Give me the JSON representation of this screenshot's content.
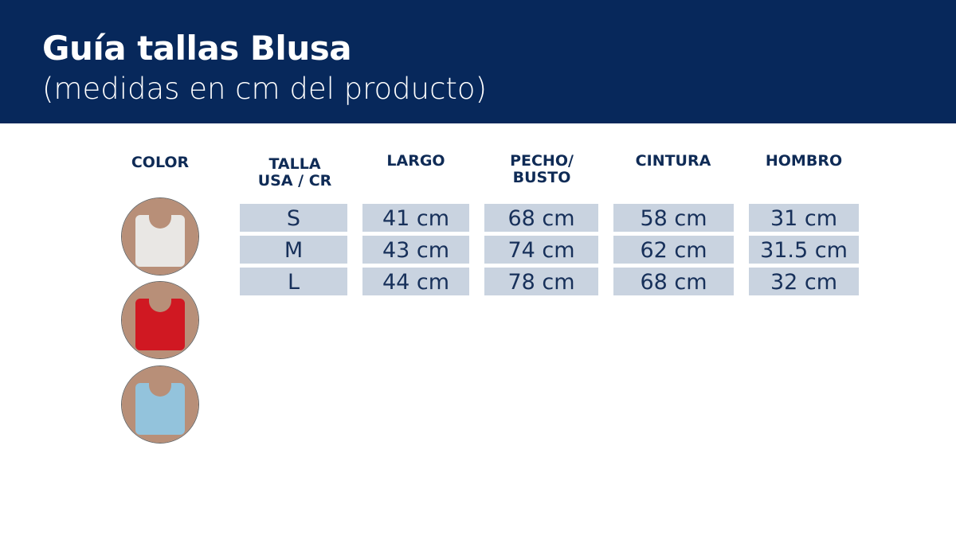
{
  "header": {
    "title": "Guía tallas Blusa",
    "subtitle": "(medidas en cm del producto)"
  },
  "columns": [
    "COLOR",
    "TALLA\nUSA / CR",
    "LARGO",
    "PECHO/\nBUSTO",
    "CINTURA",
    "HOMBRO"
  ],
  "colors": [
    {
      "name": "white-top",
      "hex": "#e9e7e4"
    },
    {
      "name": "red-top",
      "hex": "#d01822"
    },
    {
      "name": "light-blue-top",
      "hex": "#93c3dc"
    }
  ],
  "rows": [
    [
      "S",
      "41 cm",
      "68 cm",
      "58 cm",
      "31 cm"
    ],
    [
      "M",
      "43 cm",
      "74 cm",
      "62 cm",
      "31.5 cm"
    ],
    [
      "L",
      "44 cm",
      "78 cm",
      "68 cm",
      "32 cm"
    ]
  ]
}
